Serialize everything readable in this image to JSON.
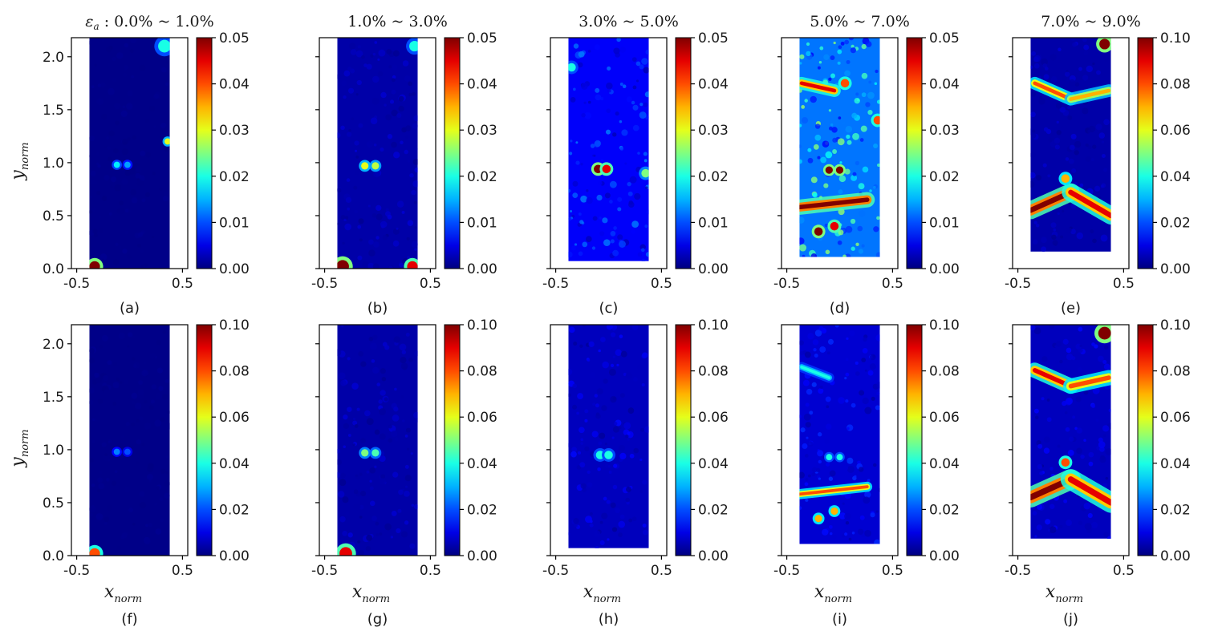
{
  "chart_data": [
    {
      "id": "a",
      "type": "heatmap",
      "panel_label": "(a)",
      "title_symbol": "ε",
      "title_subscript": "a",
      "title": " : 0.0% ~ 1.0%",
      "xlabel": "",
      "ylabel": "y",
      "ylabel_sub": "norm",
      "xticks": [
        "-0.5",
        "0.5"
      ],
      "yticks": [
        "0.0",
        "0.5",
        "1.0",
        "1.5",
        "2.0"
      ],
      "xlim": [
        -0.55,
        0.55
      ],
      "ylim": [
        0,
        2.18
      ],
      "colorbar_ticks": [
        "0.00",
        "0.01",
        "0.02",
        "0.03",
        "0.04",
        "0.05"
      ],
      "clim": [
        0,
        0.05
      ],
      "cmap": "jet",
      "specimen": {
        "x_left": -0.38,
        "x_right": 0.38,
        "y_bottom": 0.0,
        "y_top": 2.18,
        "base": 0.0004
      },
      "bands": [],
      "hotspots": [
        {
          "x": -0.12,
          "y": 0.98,
          "r": 0.03,
          "v": 0.018
        },
        {
          "x": -0.02,
          "y": 0.98,
          "r": 0.03,
          "v": 0.014
        },
        {
          "x": 0.36,
          "y": 1.2,
          "r": 0.03,
          "v": 0.03
        },
        {
          "x": -0.33,
          "y": 0.02,
          "r": 0.05,
          "v": 0.05
        },
        {
          "x": 0.33,
          "y": 2.1,
          "r": 0.06,
          "v": 0.02
        }
      ]
    },
    {
      "id": "b",
      "type": "heatmap",
      "panel_label": "(b)",
      "title": "1.0% ~ 3.0%",
      "xlabel": "",
      "ylabel": "",
      "xticks": [
        "-0.5",
        "0.5"
      ],
      "yticks": [],
      "xlim": [
        -0.55,
        0.55
      ],
      "ylim": [
        0,
        2.18
      ],
      "colorbar_ticks": [
        "0.00",
        "0.01",
        "0.02",
        "0.03",
        "0.04",
        "0.05"
      ],
      "clim": [
        0,
        0.05
      ],
      "cmap": "jet",
      "specimen": {
        "x_left": -0.38,
        "x_right": 0.38,
        "y_bottom": 0.0,
        "y_top": 2.18,
        "base": 0.002
      },
      "bands": [],
      "hotspots": [
        {
          "x": -0.12,
          "y": 0.97,
          "r": 0.035,
          "v": 0.03
        },
        {
          "x": -0.02,
          "y": 0.97,
          "r": 0.035,
          "v": 0.028
        },
        {
          "x": -0.33,
          "y": 0.02,
          "r": 0.06,
          "v": 0.05
        },
        {
          "x": 0.33,
          "y": 0.02,
          "r": 0.05,
          "v": 0.045
        },
        {
          "x": 0.35,
          "y": 2.1,
          "r": 0.05,
          "v": 0.02
        }
      ]
    },
    {
      "id": "c",
      "type": "heatmap",
      "panel_label": "(c)",
      "title": "3.0% ~ 5.0%",
      "xlabel": "",
      "ylabel": "",
      "xticks": [
        "-0.5",
        "0.5"
      ],
      "yticks": [],
      "xlim": [
        -0.55,
        0.55
      ],
      "ylim": [
        0,
        2.18
      ],
      "colorbar_ticks": [
        "0.00",
        "0.01",
        "0.02",
        "0.03",
        "0.04",
        "0.05"
      ],
      "clim": [
        0,
        0.05
      ],
      "cmap": "jet",
      "specimen": {
        "x_left": -0.38,
        "x_right": 0.38,
        "y_bottom": 0.07,
        "y_top": 2.18,
        "base": 0.006
      },
      "bands": [],
      "hotspots": [
        {
          "x": -0.1,
          "y": 0.94,
          "r": 0.04,
          "v": 0.05
        },
        {
          "x": -0.02,
          "y": 0.94,
          "r": 0.04,
          "v": 0.045
        },
        {
          "x": 0.35,
          "y": 0.9,
          "r": 0.04,
          "v": 0.025
        },
        {
          "x": -0.35,
          "y": 1.9,
          "r": 0.04,
          "v": 0.02
        }
      ]
    },
    {
      "id": "d",
      "type": "heatmap",
      "panel_label": "(d)",
      "title": "5.0% ~ 7.0%",
      "xlabel": "",
      "ylabel": "",
      "xticks": [
        "-0.5",
        "0.5"
      ],
      "yticks": [],
      "xlim": [
        -0.55,
        0.55
      ],
      "ylim": [
        0,
        2.18
      ],
      "colorbar_ticks": [
        "0.00",
        "0.01",
        "0.02",
        "0.03",
        "0.04",
        "0.05"
      ],
      "clim": [
        0,
        0.05
      ],
      "cmap": "jet",
      "specimen": {
        "x_left": -0.38,
        "x_right": 0.38,
        "y_bottom": 0.11,
        "y_top": 2.18,
        "base": 0.012
      },
      "bands": [
        {
          "x0": -0.38,
          "y0": 0.58,
          "x1": 0.26,
          "y1": 0.65,
          "w": 0.06,
          "v": 0.05
        },
        {
          "x0": -0.36,
          "y0": 1.75,
          "x1": -0.05,
          "y1": 1.68,
          "w": 0.05,
          "v": 0.045
        }
      ],
      "hotspots": [
        {
          "x": -0.1,
          "y": 0.93,
          "r": 0.035,
          "v": 0.05
        },
        {
          "x": 0.0,
          "y": 0.93,
          "r": 0.035,
          "v": 0.05
        },
        {
          "x": -0.2,
          "y": 0.35,
          "r": 0.04,
          "v": 0.05
        },
        {
          "x": -0.05,
          "y": 0.4,
          "r": 0.04,
          "v": 0.045
        },
        {
          "x": 0.36,
          "y": 1.4,
          "r": 0.04,
          "v": 0.04
        },
        {
          "x": 0.05,
          "y": 1.75,
          "r": 0.04,
          "v": 0.04
        }
      ]
    },
    {
      "id": "e",
      "type": "heatmap",
      "panel_label": "(e)",
      "title": "7.0% ~ 9.0%",
      "xlabel": "",
      "ylabel": "",
      "xticks": [
        "-0.5",
        "0.5"
      ],
      "yticks": [],
      "xlim": [
        -0.55,
        0.55
      ],
      "ylim": [
        0,
        2.18
      ],
      "colorbar_ticks": [
        "0.00",
        "0.02",
        "0.04",
        "0.06",
        "0.08",
        "0.10"
      ],
      "clim": [
        0,
        0.1
      ],
      "cmap": "jet",
      "specimen": {
        "x_left": -0.38,
        "x_right": 0.38,
        "y_bottom": 0.16,
        "y_top": 2.18,
        "base": 0.004
      },
      "bands": [
        {
          "x0": -0.38,
          "y0": 0.55,
          "x1": 0.0,
          "y1": 0.72,
          "w": 0.07,
          "v": 0.1
        },
        {
          "x0": 0.0,
          "y0": 0.72,
          "x1": 0.38,
          "y1": 0.5,
          "w": 0.07,
          "v": 0.09
        },
        {
          "x0": -0.34,
          "y0": 1.75,
          "x1": 0.0,
          "y1": 1.6,
          "w": 0.05,
          "v": 0.08
        },
        {
          "x0": 0.0,
          "y0": 1.6,
          "x1": 0.36,
          "y1": 1.68,
          "w": 0.05,
          "v": 0.07
        }
      ],
      "hotspots": [
        {
          "x": 0.32,
          "y": 2.12,
          "r": 0.05,
          "v": 0.1
        },
        {
          "x": -0.05,
          "y": 0.85,
          "r": 0.04,
          "v": 0.07
        }
      ]
    },
    {
      "id": "f",
      "type": "heatmap",
      "panel_label": "(f)",
      "title": "",
      "xlabel": "x",
      "xlabel_sub": "norm",
      "ylabel": "y",
      "ylabel_sub": "norm",
      "xticks": [
        "-0.5",
        "0.5"
      ],
      "yticks": [
        "0.0",
        "0.5",
        "1.0",
        "1.5",
        "2.0"
      ],
      "xlim": [
        -0.55,
        0.55
      ],
      "ylim": [
        0,
        2.18
      ],
      "colorbar_ticks": [
        "0.00",
        "0.02",
        "0.04",
        "0.06",
        "0.08",
        "0.10"
      ],
      "clim": [
        0,
        0.1
      ],
      "cmap": "jet",
      "specimen": {
        "x_left": -0.38,
        "x_right": 0.38,
        "y_bottom": 0.0,
        "y_top": 2.18,
        "base": 0.0008
      },
      "bands": [],
      "hotspots": [
        {
          "x": -0.12,
          "y": 0.98,
          "r": 0.03,
          "v": 0.025
        },
        {
          "x": -0.02,
          "y": 0.98,
          "r": 0.03,
          "v": 0.02
        },
        {
          "x": -0.33,
          "y": 0.02,
          "r": 0.05,
          "v": 0.08
        }
      ]
    },
    {
      "id": "g",
      "type": "heatmap",
      "panel_label": "(g)",
      "title": "",
      "xlabel": "x",
      "xlabel_sub": "norm",
      "ylabel": "",
      "xticks": [
        "-0.5",
        "0.5"
      ],
      "yticks": [],
      "xlim": [
        -0.55,
        0.55
      ],
      "ylim": [
        0,
        2.18
      ],
      "colorbar_ticks": [
        "0.00",
        "0.02",
        "0.04",
        "0.06",
        "0.08",
        "0.10"
      ],
      "clim": [
        0,
        0.1
      ],
      "cmap": "jet",
      "specimen": {
        "x_left": -0.38,
        "x_right": 0.38,
        "y_bottom": 0.0,
        "y_top": 2.18,
        "base": 0.004
      },
      "bands": [],
      "hotspots": [
        {
          "x": -0.12,
          "y": 0.97,
          "r": 0.035,
          "v": 0.05
        },
        {
          "x": -0.02,
          "y": 0.97,
          "r": 0.035,
          "v": 0.045
        },
        {
          "x": -0.3,
          "y": 0.02,
          "r": 0.06,
          "v": 0.09
        }
      ]
    },
    {
      "id": "h",
      "type": "heatmap",
      "panel_label": "(h)",
      "title": "",
      "xlabel": "x",
      "xlabel_sub": "norm",
      "ylabel": "",
      "xticks": [
        "-0.5",
        "0.5"
      ],
      "yticks": [],
      "xlim": [
        -0.55,
        0.55
      ],
      "ylim": [
        0,
        2.18
      ],
      "colorbar_ticks": [
        "0.00",
        "0.02",
        "0.04",
        "0.06",
        "0.08",
        "0.10"
      ],
      "clim": [
        0,
        0.1
      ],
      "cmap": "jet",
      "specimen": {
        "x_left": -0.38,
        "x_right": 0.38,
        "y_bottom": 0.07,
        "y_top": 2.18,
        "base": 0.006
      },
      "bands": [],
      "hotspots": [
        {
          "x": -0.08,
          "y": 0.95,
          "r": 0.04,
          "v": 0.04
        },
        {
          "x": 0.0,
          "y": 0.95,
          "r": 0.04,
          "v": 0.04
        }
      ]
    },
    {
      "id": "i",
      "type": "heatmap",
      "panel_label": "(i)",
      "title": "",
      "xlabel": "x",
      "xlabel_sub": "norm",
      "ylabel": "",
      "xticks": [
        "-0.5",
        "0.5"
      ],
      "yticks": [],
      "xlim": [
        -0.55,
        0.55
      ],
      "ylim": [
        0,
        2.18
      ],
      "colorbar_ticks": [
        "0.00",
        "0.02",
        "0.04",
        "0.06",
        "0.08",
        "0.10"
      ],
      "clim": [
        0,
        0.1
      ],
      "cmap": "jet",
      "specimen": {
        "x_left": -0.38,
        "x_right": 0.38,
        "y_bottom": 0.11,
        "y_top": 2.18,
        "base": 0.008
      },
      "bands": [
        {
          "x0": -0.38,
          "y0": 0.58,
          "x1": 0.26,
          "y1": 0.65,
          "w": 0.04,
          "v": 0.08
        },
        {
          "x0": -0.36,
          "y0": 1.78,
          "x1": -0.1,
          "y1": 1.68,
          "w": 0.04,
          "v": 0.04
        }
      ],
      "hotspots": [
        {
          "x": -0.1,
          "y": 0.93,
          "r": 0.03,
          "v": 0.04
        },
        {
          "x": 0.0,
          "y": 0.93,
          "r": 0.03,
          "v": 0.04
        },
        {
          "x": -0.2,
          "y": 0.35,
          "r": 0.035,
          "v": 0.07
        },
        {
          "x": -0.05,
          "y": 0.42,
          "r": 0.035,
          "v": 0.07
        }
      ]
    },
    {
      "id": "j",
      "type": "heatmap",
      "panel_label": "(j)",
      "title": "",
      "xlabel": "x",
      "xlabel_sub": "norm",
      "ylabel": "",
      "xticks": [
        "-0.5",
        "0.5"
      ],
      "yticks": [],
      "xlim": [
        -0.55,
        0.55
      ],
      "ylim": [
        0,
        2.18
      ],
      "colorbar_ticks": [
        "0.00",
        "0.02",
        "0.04",
        "0.06",
        "0.08",
        "0.10"
      ],
      "clim": [
        0,
        0.1
      ],
      "cmap": "jet",
      "specimen": {
        "x_left": -0.38,
        "x_right": 0.38,
        "y_bottom": 0.16,
        "y_top": 2.18,
        "base": 0.006
      },
      "bands": [
        {
          "x0": -0.38,
          "y0": 0.55,
          "x1": 0.0,
          "y1": 0.72,
          "w": 0.08,
          "v": 0.1
        },
        {
          "x0": 0.0,
          "y0": 0.72,
          "x1": 0.38,
          "y1": 0.5,
          "w": 0.08,
          "v": 0.09
        },
        {
          "x0": -0.34,
          "y0": 1.75,
          "x1": 0.0,
          "y1": 1.6,
          "w": 0.06,
          "v": 0.09
        },
        {
          "x0": 0.0,
          "y0": 1.6,
          "x1": 0.36,
          "y1": 1.68,
          "w": 0.06,
          "v": 0.08
        }
      ],
      "hotspots": [
        {
          "x": 0.32,
          "y": 2.1,
          "r": 0.06,
          "v": 0.1
        },
        {
          "x": -0.05,
          "y": 0.88,
          "r": 0.04,
          "v": 0.08
        }
      ]
    }
  ]
}
